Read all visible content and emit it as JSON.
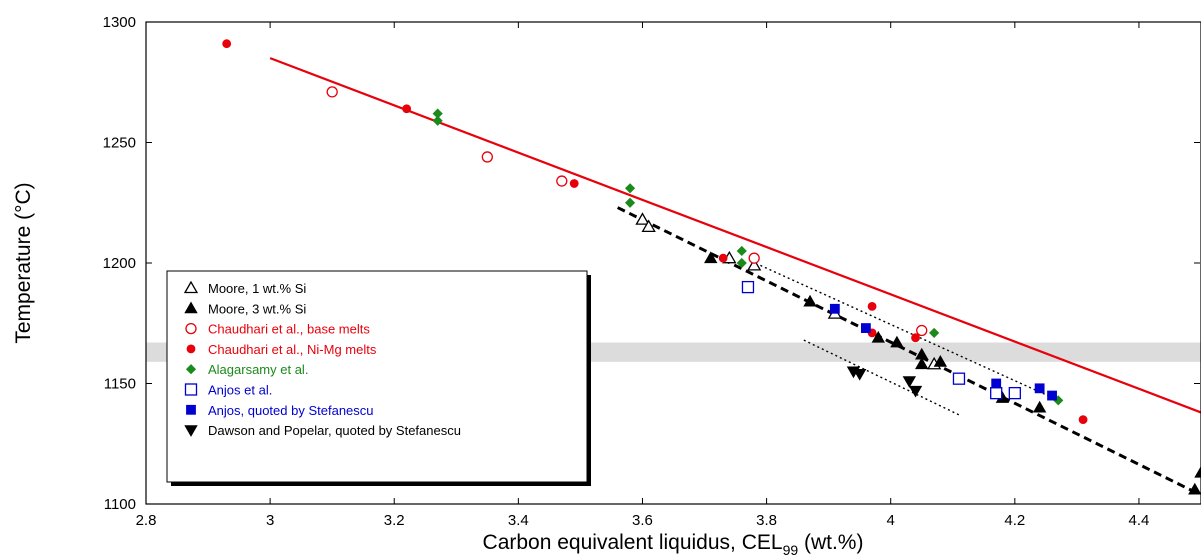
{
  "chart_data": {
    "type": "scatter",
    "xlabel_main": "Carbon equivalent liquidus, CEL",
    "xlabel_sub": "99",
    "xlabel_tail": " (wt.%)",
    "ylabel": "Temperature (°C)",
    "xlim": [
      2.8,
      4.5
    ],
    "ylim": [
      1100,
      1300
    ],
    "xticks": [
      "2.8",
      "3",
      "3.2",
      "3.4",
      "3.6",
      "3.8",
      "4",
      "4.2",
      "4.4"
    ],
    "yticks": [
      "1100",
      "1150",
      "1200",
      "1250",
      "1300"
    ],
    "band": {
      "y0": 1159,
      "y1": 1167,
      "color": "#dcdcdc"
    },
    "lines": [
      {
        "id": "red-liquidus-line",
        "style": "solid",
        "color": "#e8000b",
        "points": [
          [
            3.0,
            1285
          ],
          [
            4.5,
            1138
          ]
        ]
      },
      {
        "id": "black-fit-line",
        "style": "dashed",
        "color": "#000000",
        "points": [
          [
            3.56,
            1223
          ],
          [
            4.49,
            1105
          ]
        ]
      },
      {
        "id": "upper-dotted-line",
        "style": "dotted",
        "color": "#000000",
        "points": [
          [
            3.79,
            1199
          ],
          [
            4.27,
            1143
          ]
        ]
      },
      {
        "id": "lower-dotted-line",
        "style": "dotted",
        "color": "#000000",
        "points": [
          [
            3.86,
            1168
          ],
          [
            4.11,
            1137
          ]
        ]
      }
    ],
    "series": [
      {
        "name": "Moore, 1 wt.% Si",
        "marker": "triangle-up-open",
        "color": "#000000",
        "points": [
          [
            3.6,
            1218
          ],
          [
            3.61,
            1215
          ],
          [
            3.74,
            1202
          ],
          [
            3.78,
            1199
          ],
          [
            3.91,
            1179
          ],
          [
            4.07,
            1158
          ]
        ]
      },
      {
        "name": "Moore, 3 wt.% Si",
        "marker": "triangle-up-filled",
        "color": "#000000",
        "points": [
          [
            3.71,
            1202
          ],
          [
            3.87,
            1184
          ],
          [
            3.98,
            1169
          ],
          [
            4.01,
            1167
          ],
          [
            4.05,
            1162
          ],
          [
            4.05,
            1158
          ],
          [
            4.08,
            1159
          ],
          [
            4.18,
            1144
          ],
          [
            4.24,
            1140
          ],
          [
            4.49,
            1106
          ],
          [
            4.5,
            1113
          ]
        ]
      },
      {
        "name": "Chaudhari et al., base melts",
        "marker": "circle-open",
        "color": "#e8000b",
        "points": [
          [
            3.1,
            1271
          ],
          [
            3.35,
            1244
          ],
          [
            3.47,
            1234
          ],
          [
            3.78,
            1202
          ],
          [
            4.05,
            1172
          ]
        ]
      },
      {
        "name": "Chaudhari et al., Ni-Mg melts",
        "marker": "circle-filled",
        "color": "#e8000b",
        "points": [
          [
            2.93,
            1291
          ],
          [
            3.22,
            1264
          ],
          [
            3.49,
            1233
          ],
          [
            3.73,
            1202
          ],
          [
            3.97,
            1182
          ],
          [
            3.97,
            1171
          ],
          [
            4.04,
            1169
          ],
          [
            4.31,
            1135
          ]
        ]
      },
      {
        "name": "Alagarsamy et al.",
        "marker": "diamond-filled",
        "color": "#1a8a1a",
        "points": [
          [
            3.27,
            1262
          ],
          [
            3.27,
            1259
          ],
          [
            3.58,
            1231
          ],
          [
            3.58,
            1225
          ],
          [
            3.76,
            1205
          ],
          [
            3.76,
            1200
          ],
          [
            4.07,
            1171
          ],
          [
            4.27,
            1143
          ]
        ]
      },
      {
        "name": "Anjos et al.",
        "marker": "square-open",
        "color": "#0000d0",
        "points": [
          [
            3.77,
            1190
          ],
          [
            4.11,
            1152
          ],
          [
            4.17,
            1146
          ],
          [
            4.2,
            1146
          ]
        ]
      },
      {
        "name": "Anjos, quoted by Stefanescu",
        "marker": "square-filled",
        "color": "#0000d0",
        "points": [
          [
            3.91,
            1181
          ],
          [
            3.96,
            1173
          ],
          [
            4.17,
            1150
          ],
          [
            4.24,
            1148
          ],
          [
            4.26,
            1145
          ]
        ]
      },
      {
        "name": "Dawson and Popelar, quoted by Stefanescu",
        "marker": "triangle-down-filled",
        "color": "#000000",
        "points": [
          [
            3.94,
            1155
          ],
          [
            3.95,
            1154
          ],
          [
            4.03,
            1151
          ],
          [
            4.04,
            1147
          ]
        ]
      }
    ],
    "legend_position": "lower-left",
    "grid": false
  }
}
